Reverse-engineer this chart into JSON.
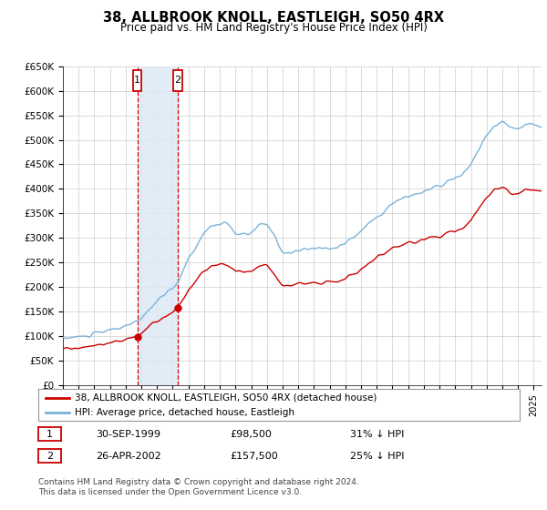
{
  "title": "38, ALLBROOK KNOLL, EASTLEIGH, SO50 4RX",
  "subtitle": "Price paid vs. HM Land Registry's House Price Index (HPI)",
  "hpi_color": "#7ab3d9",
  "price_color": "#cc0000",
  "background_color": "#ffffff",
  "grid_color": "#cccccc",
  "shading_color": "#dce9f5",
  "transaction_line_color": "#dd0000",
  "ylabel_ticks": [
    "£0",
    "£50K",
    "£100K",
    "£150K",
    "£200K",
    "£250K",
    "£300K",
    "£350K",
    "£400K",
    "£450K",
    "£500K",
    "£550K",
    "£600K",
    "£650K"
  ],
  "ytick_values": [
    0,
    50000,
    100000,
    150000,
    200000,
    250000,
    300000,
    350000,
    400000,
    450000,
    500000,
    550000,
    600000,
    650000
  ],
  "xmin": 1995.0,
  "xmax": 2025.5,
  "ymin": 0,
  "ymax": 650000,
  "transactions": [
    {
      "date": 1999.75,
      "price": 98500,
      "label": "1"
    },
    {
      "date": 2002.33,
      "price": 157500,
      "label": "2"
    }
  ],
  "transaction_details": [
    {
      "label": "1",
      "date_str": "30-SEP-1999",
      "price_str": "£98,500",
      "hpi_str": "31% ↓ HPI"
    },
    {
      "label": "2",
      "date_str": "26-APR-2002",
      "price_str": "£157,500",
      "hpi_str": "25% ↓ HPI"
    }
  ],
  "legend_house": "38, ALLBROOK KNOLL, EASTLEIGH, SO50 4RX (detached house)",
  "legend_hpi": "HPI: Average price, detached house, Eastleigh",
  "footer": "Contains HM Land Registry data © Crown copyright and database right 2024.\nThis data is licensed under the Open Government Licence v3.0."
}
